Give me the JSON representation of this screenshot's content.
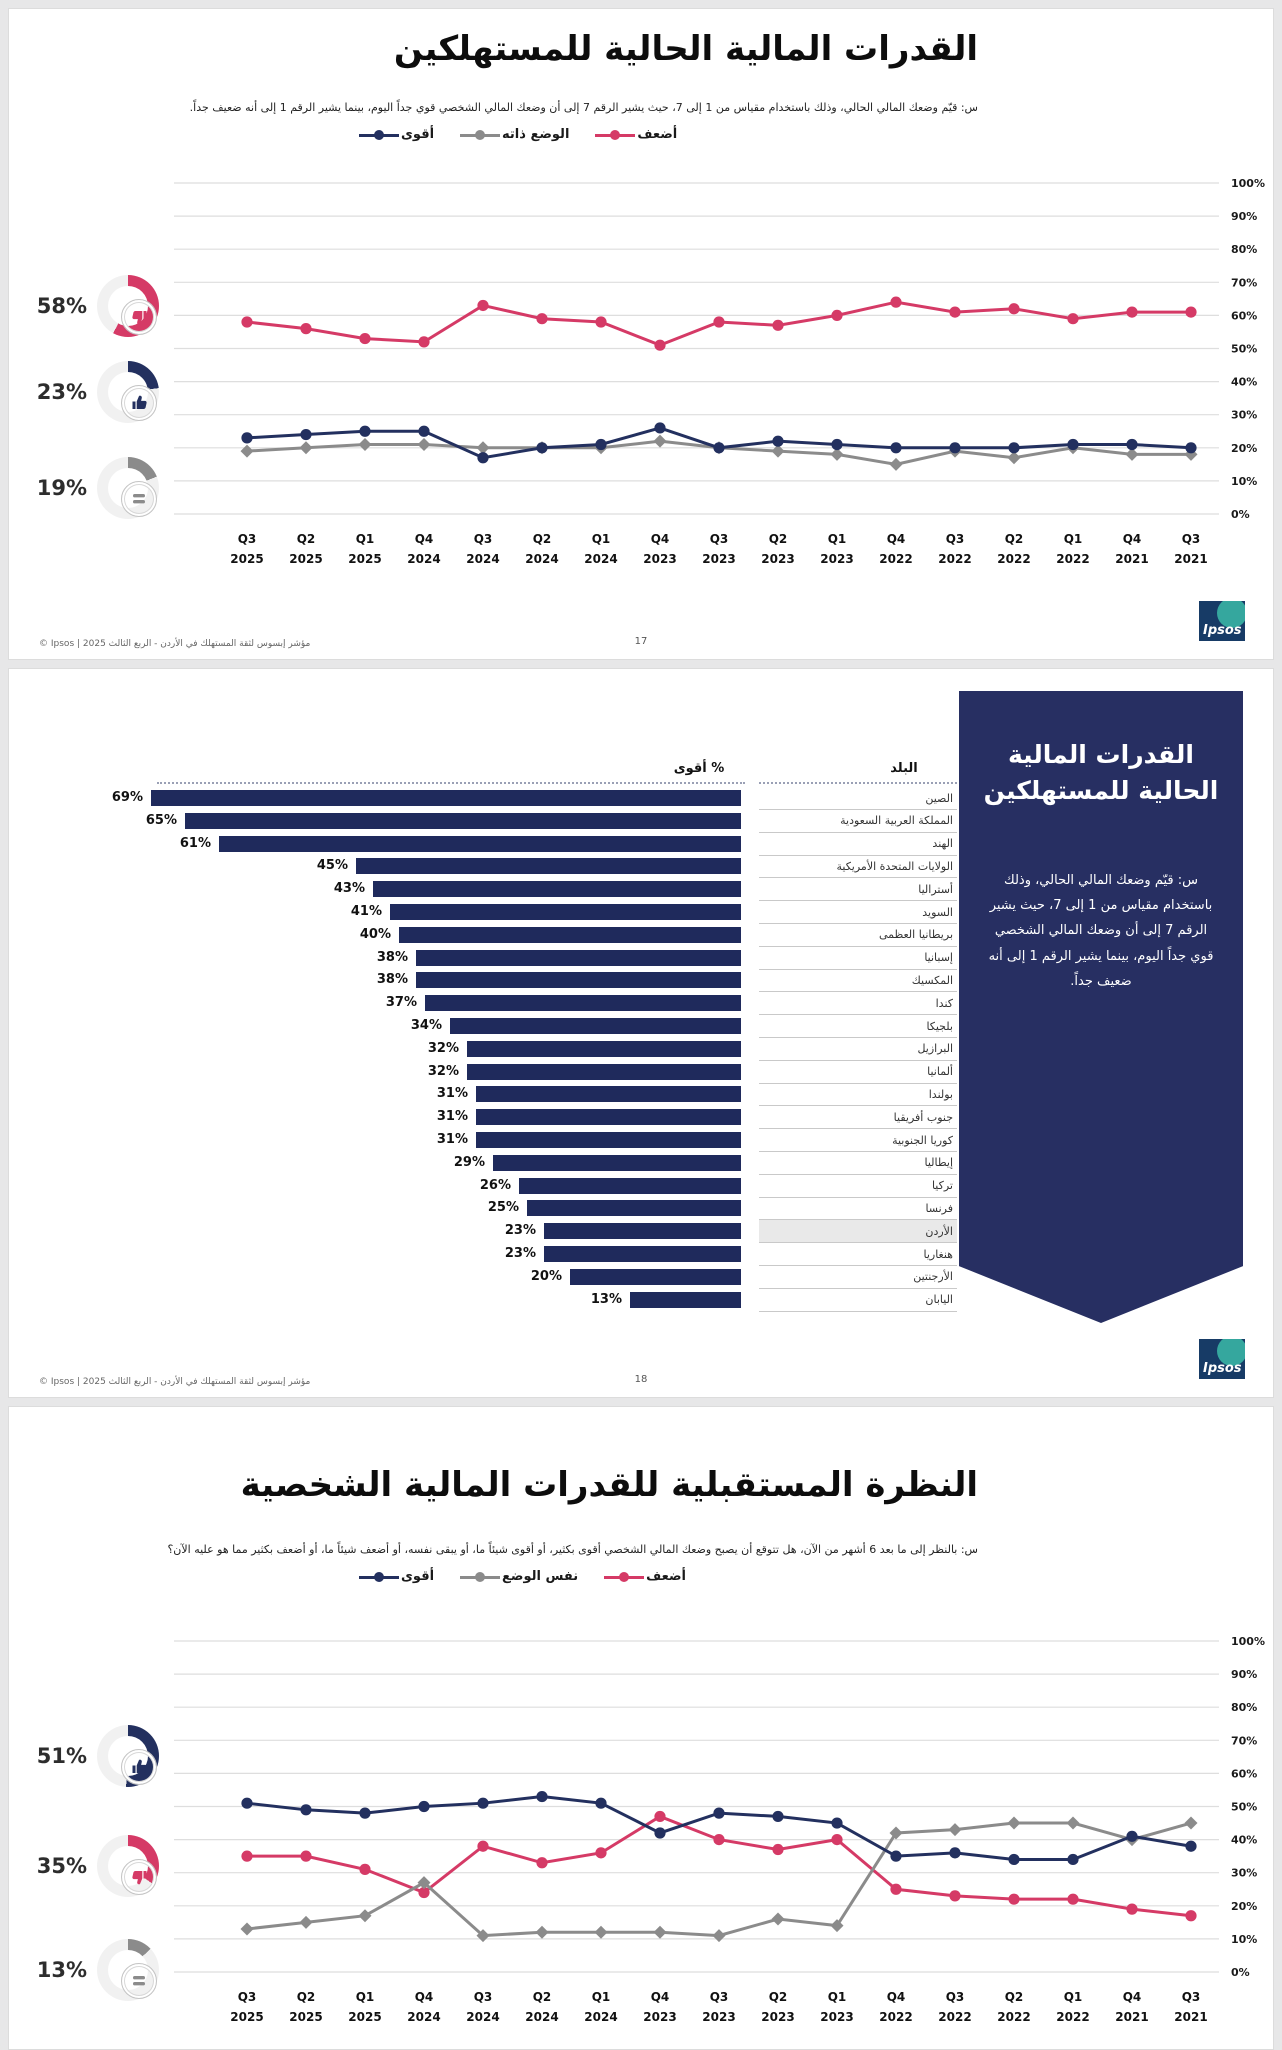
{
  "colors": {
    "pink": "#D53A66",
    "navy": "#23305F",
    "gray": "#8B8B8B",
    "bar_navy": "#1F2A5C",
    "box_navy": "#272F62",
    "grid": "#dedede",
    "highlight_row": "#e9e9e9",
    "ring_empty": "#f1f1f1"
  },
  "footer": {
    "text": "مؤشر إبسوس لثقة المستهلك في الأردن - الربع الثالث 2025 | Ipsos ©",
    "page_panel1": "17",
    "page_panel2": "18",
    "logo_text": "Ipsos"
  },
  "y_ticks": [
    "100%",
    "90%",
    "80%",
    "70%",
    "60%",
    "50%",
    "40%",
    "30%",
    "20%",
    "10%",
    "0%"
  ],
  "panel1": {
    "title": "القدرات المالية الحالية للمستهلكين",
    "question": "س: قيّم وضعك المالي الحالي، وذلك باستخدام مقياس من 1 إلى 7، حيث يشير الرقم 7 إلى أن وضعك المالي الشخصي قوي جداً اليوم، بينما يشير الرقم 1 إلى أنه ضعيف جداً.",
    "legend": [
      {
        "label": "أقوى",
        "color": "#23305F"
      },
      {
        "label": "الوضع ذاته",
        "color": "#8B8B8B"
      },
      {
        "label": "أضعف",
        "color": "#D53A66"
      }
    ],
    "stats": [
      {
        "value": "58%",
        "pct": 58,
        "color": "#D53A66",
        "icon": "thumbs-down"
      },
      {
        "value": "23%",
        "pct": 23,
        "color": "#23305F",
        "icon": "thumbs-up"
      },
      {
        "value": "19%",
        "pct": 19,
        "color": "#8B8B8B",
        "icon": "equals"
      }
    ]
  },
  "panel2": {
    "value_header": "% أقوى",
    "country_header": "البلد",
    "box_title": "القدرات المالية الحالية للمستهلكين",
    "box_text": "س: قيّم وضعك المالي الحالي، وذلك باستخدام مقياس من 1 إلى 7، حيث يشير الرقم 7 إلى أن وضعك المالي الشخصي قوي جداً اليوم، بينما يشير الرقم 1 إلى أنه ضعيف جداً."
  },
  "panel3": {
    "title": "النظرة المستقبلية للقدرات المالية الشخصية",
    "question": "س: بالنظر إلى ما بعد 6 أشهر من الآن، هل تتوقع أن يصبح وضعك المالي الشخصي أقوى بكثير، أو أقوى شيئاً ما، أو يبقى نفسه، أو أضعف شيئاً ما، أو أضعف بكثير مما هو عليه الآن؟",
    "legend": [
      {
        "label": "أقوى",
        "color": "#23305F"
      },
      {
        "label": "نفس الوضع",
        "color": "#8B8B8B"
      },
      {
        "label": "أضعف",
        "color": "#D53A66"
      }
    ],
    "stats": [
      {
        "value": "51%",
        "pct": 51,
        "color": "#23305F",
        "icon": "thumbs-up"
      },
      {
        "value": "35%",
        "pct": 35,
        "color": "#D53A66",
        "icon": "thumbs-down"
      },
      {
        "value": "13%",
        "pct": 13,
        "color": "#8B8B8B",
        "icon": "equals"
      }
    ]
  },
  "chart_data": [
    {
      "type": "line",
      "title": "القدرات المالية الحالية للمستهلكين",
      "ylim": [
        0,
        100
      ],
      "grid": true,
      "legend_position": "top",
      "categories": [
        "Q3 2025",
        "Q2 2025",
        "Q1 2025",
        "Q4 2024",
        "Q3 2024",
        "Q2 2024",
        "Q1 2024",
        "Q4 2023",
        "Q3 2023",
        "Q2 2023",
        "Q1 2023",
        "Q4 2022",
        "Q3 2022",
        "Q2 2022",
        "Q1 2022",
        "Q4 2021",
        "Q3 2021"
      ],
      "series": [
        {
          "name": "أضعف",
          "color": "#D53A66",
          "marker": "circle",
          "values": [
            58,
            56,
            53,
            52,
            63,
            59,
            58,
            51,
            58,
            57,
            60,
            64,
            61,
            62,
            59,
            61,
            61
          ]
        },
        {
          "name": "الوضع ذاته",
          "color": "#8B8B8B",
          "marker": "diamond",
          "values": [
            19,
            20,
            21,
            21,
            20,
            20,
            20,
            22,
            20,
            19,
            18,
            15,
            19,
            17,
            20,
            18,
            18
          ]
        },
        {
          "name": "أقوى",
          "color": "#23305F",
          "marker": "circle",
          "values": [
            23,
            24,
            25,
            25,
            17,
            20,
            21,
            26,
            20,
            22,
            21,
            20,
            20,
            20,
            21,
            21,
            20
          ]
        }
      ]
    },
    {
      "type": "bar",
      "title": "% أقوى حسب البلد",
      "value_label": "% أقوى",
      "bar_color": "#1F2A5C",
      "highlight": "الأردن",
      "categories": [
        "الصين",
        "المملكة العربية السعودية",
        "الهند",
        "الولايات المتحدة الأمريكية",
        "أستراليا",
        "السويد",
        "بريطانيا العظمى",
        "إسبانيا",
        "المكسيك",
        "كندا",
        "بلجيكا",
        "البرازيل",
        "ألمانيا",
        "بولندا",
        "جنوب أفريقيا",
        "كوريا الجنوبية",
        "إيطاليا",
        "تركيا",
        "فرنسا",
        "الأردن",
        "هنغاريا",
        "الأرجنتين",
        "اليابان"
      ],
      "values": [
        69,
        65,
        61,
        45,
        43,
        41,
        40,
        38,
        38,
        37,
        34,
        32,
        32,
        31,
        31,
        31,
        29,
        26,
        25,
        23,
        23,
        20,
        13
      ]
    },
    {
      "type": "line",
      "title": "النظرة المستقبلية للقدرات المالية الشخصية",
      "ylim": [
        0,
        100
      ],
      "grid": true,
      "legend_position": "top",
      "categories": [
        "Q3 2025",
        "Q2 2025",
        "Q1 2025",
        "Q4 2024",
        "Q3 2024",
        "Q2 2024",
        "Q1 2024",
        "Q4 2023",
        "Q3 2023",
        "Q2 2023",
        "Q1 2023",
        "Q4 2022",
        "Q3 2022",
        "Q2 2022",
        "Q1 2022",
        "Q4 2021",
        "Q3 2021"
      ],
      "series": [
        {
          "name": "أضعف",
          "color": "#D53A66",
          "marker": "circle",
          "values": [
            35,
            35,
            31,
            24,
            38,
            33,
            36,
            47,
            40,
            37,
            40,
            25,
            23,
            22,
            22,
            19,
            17
          ]
        },
        {
          "name": "نفس الوضع",
          "color": "#8B8B8B",
          "marker": "diamond",
          "values": [
            13,
            15,
            17,
            27,
            11,
            12,
            12,
            12,
            11,
            16,
            14,
            42,
            43,
            45,
            45,
            40,
            45
          ]
        },
        {
          "name": "أقوى",
          "color": "#23305F",
          "marker": "circle",
          "values": [
            51,
            49,
            48,
            50,
            51,
            53,
            51,
            42,
            48,
            47,
            45,
            35,
            36,
            34,
            34,
            41,
            38
          ]
        }
      ]
    }
  ]
}
